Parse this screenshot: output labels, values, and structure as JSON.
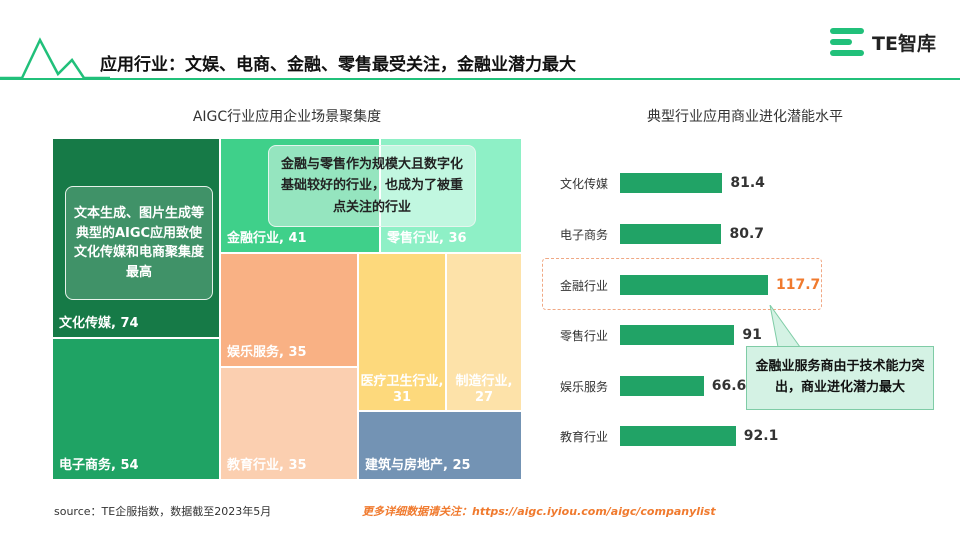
{
  "header": {
    "title": "应用行业：文娱、电商、金融、零售最受关注，金融业潜力最大",
    "logo_text": "TE智库"
  },
  "treemap": {
    "title": "AIGC行业应用企业场景聚集度",
    "callout_left": "文本生成、图片生成等典型的AIGC应用致使文化传媒和电商聚集度最高",
    "callout_top": "金融与零售作为规模大且数字化基础较好的行业，也成为了被重点关注的行业",
    "cells": [
      {
        "label": "文化传媒, 74",
        "color": "#167a47"
      },
      {
        "label": "电子商务, 54",
        "color": "#1fa364"
      },
      {
        "label": "金融行业, 41",
        "color": "#3fd08a"
      },
      {
        "label": "零售行业, 36",
        "color": "#8ef0c6"
      },
      {
        "label": "娱乐服务, 35",
        "color": "#f9b184"
      },
      {
        "label": "教育行业, 35",
        "color": "#fbcfb0"
      },
      {
        "label": "医疗卫生行业, 31",
        "color": "#fdd97c"
      },
      {
        "label": "制造行业, 27",
        "color": "#fde2a9"
      },
      {
        "label": "建筑与房地产, 25",
        "color": "#7393b4"
      }
    ]
  },
  "bars": {
    "title": "典型行业应用商业进化潜能水平",
    "highlight_callout": "金融业服务商由于技术能力突出，商业进化潜力最大",
    "bar_color": "#21a366",
    "highlight_value_color": "#f07a2e"
  },
  "chart_data": [
    {
      "type": "treemap",
      "title": "AIGC行业应用企业场景聚集度",
      "categories": [
        "文化传媒",
        "电子商务",
        "金融行业",
        "零售行业",
        "娱乐服务",
        "教育行业",
        "医疗卫生行业",
        "制造行业",
        "建筑与房地产"
      ],
      "values": [
        74,
        54,
        41,
        36,
        35,
        35,
        31,
        27,
        25
      ]
    },
    {
      "type": "bar",
      "orientation": "horizontal",
      "title": "典型行业应用商业进化潜能水平",
      "categories": [
        "文化传媒",
        "电子商务",
        "金融行业",
        "零售行业",
        "娱乐服务",
        "教育行业"
      ],
      "values": [
        81.4,
        80.7,
        117.7,
        91,
        66.6,
        92.1
      ],
      "value_labels": [
        "81.4",
        "80.7",
        "117.7",
        "91",
        "66.6",
        "92.1"
      ],
      "highlight": "金融行业"
    }
  ],
  "footer": {
    "source": "source：TE企服指数，数据截至2023年5月",
    "more_info": "更多详细数据请关注：https://aigc.iyiou.com/aigc/companylist"
  }
}
